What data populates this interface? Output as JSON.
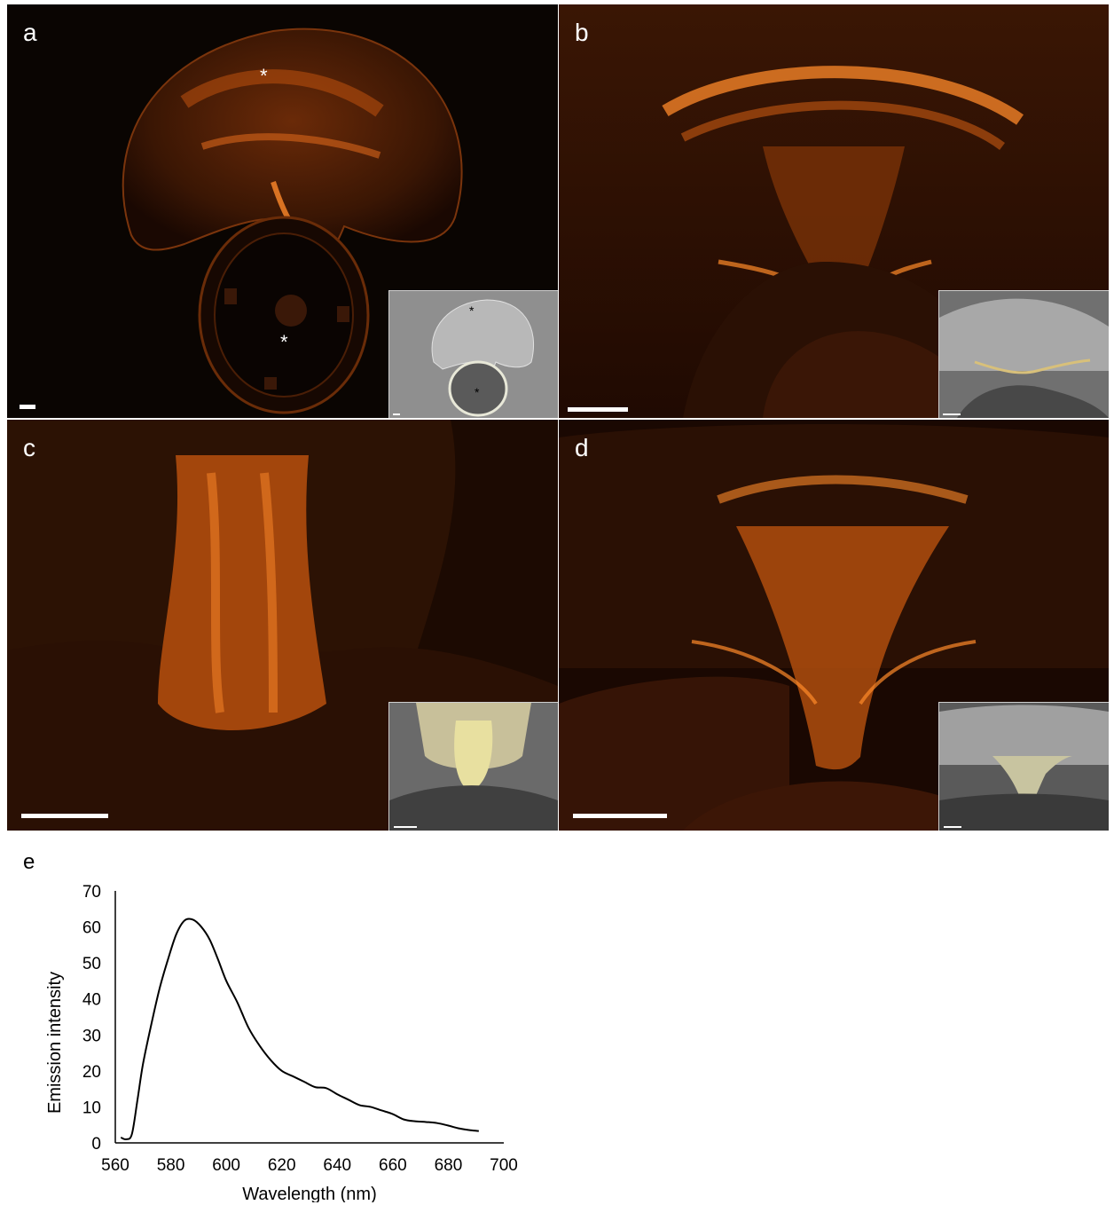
{
  "panels": {
    "a": {
      "label": "a",
      "markers": [
        "*",
        "*"
      ],
      "inset_markers": [
        "*",
        "*"
      ]
    },
    "b": {
      "label": "b"
    },
    "c": {
      "label": "c"
    },
    "d": {
      "label": "d"
    },
    "e": {
      "label": "e"
    }
  },
  "colors": {
    "fluorescence": "#ff7a1a",
    "background": "#0a0502",
    "inset_gray": "#8c8c8c"
  },
  "chart_data": {
    "type": "line",
    "title": "",
    "xlabel": "Wavelength (nm)",
    "ylabel": "Emission intensity",
    "xlim": [
      560,
      700
    ],
    "ylim": [
      0,
      70
    ],
    "xticks": [
      560,
      580,
      600,
      620,
      640,
      660,
      680,
      700
    ],
    "yticks": [
      0,
      10,
      20,
      30,
      40,
      50,
      60,
      70
    ],
    "grid": false,
    "series": [
      {
        "x": [
          562,
          564,
          566,
          568,
          570,
          573,
          576,
          579,
          582,
          585,
          588,
          591,
          594,
          597,
          600,
          604,
          608,
          612,
          616,
          620,
          624,
          628,
          632,
          636,
          640,
          644,
          648,
          652,
          656,
          660,
          664,
          668,
          672,
          676,
          680,
          684,
          688,
          691
        ],
        "y": [
          1.5,
          1.0,
          2.5,
          12,
          22,
          33,
          43,
          51,
          58,
          61.8,
          62,
          60,
          56.5,
          51,
          45,
          39,
          32,
          27,
          23,
          20,
          18.5,
          17,
          15.5,
          15.2,
          13.5,
          12,
          10.5,
          10,
          9,
          8,
          6.5,
          6,
          5.8,
          5.5,
          4.8,
          4,
          3.5,
          3.3
        ]
      }
    ]
  }
}
